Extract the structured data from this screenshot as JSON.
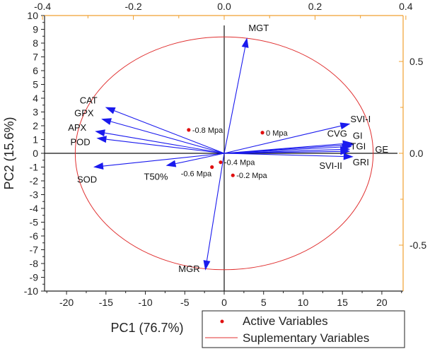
{
  "chart_data": {
    "type": "biplot",
    "xlabel": "PC1 (76.7%)",
    "ylabel": "PC2 (15.6%)",
    "xlim": [
      -22.7,
      22.7
    ],
    "ylim": [
      -10,
      10
    ],
    "xticks": [
      -20,
      -15,
      -10,
      -5,
      0,
      5,
      10,
      15,
      20
    ],
    "yticks": [
      10,
      9,
      8,
      7,
      6,
      5,
      4,
      3,
      2,
      1,
      0,
      -1,
      -2,
      -3,
      -4,
      -5,
      -6,
      -7,
      -8,
      -9,
      -10
    ],
    "top_axis": {
      "ticks": [
        "-0.4",
        "-0.2",
        "0.0",
        "0.2",
        "0.4"
      ],
      "values": [
        -0.4,
        -0.2,
        0,
        0.2,
        0.4
      ],
      "color": "#f0a030"
    },
    "right_axis": {
      "ticks": [
        "0.5",
        "0.0",
        "-0.5"
      ],
      "values": [
        0.5,
        0,
        -0.5
      ],
      "color": "#f0a030"
    },
    "circle": {
      "rx": 18.9,
      "ry": 8.45,
      "color": "#e03030"
    },
    "vectors_color": "#1a1aee",
    "vectors": [
      {
        "name": "MGT",
        "x": 2.9,
        "y": 8.4
      },
      {
        "name": "CAT",
        "x": -15.1,
        "y": 3.35
      },
      {
        "name": "GPX",
        "x": -15.6,
        "y": 2.5
      },
      {
        "name": "APX",
        "x": -16.4,
        "y": 1.6
      },
      {
        "name": "POD",
        "x": -16.2,
        "y": 1.1
      },
      {
        "name": "SOD",
        "x": -16.6,
        "y": -1.0
      },
      {
        "name": "T50%",
        "x": -7.4,
        "y": -0.9
      },
      {
        "name": "MGR",
        "x": -2.4,
        "y": -8.5
      },
      {
        "name": "SVI-I",
        "x": 16.0,
        "y": 2.15
      },
      {
        "name": "CVG",
        "x": 16.3,
        "y": 0.75
      },
      {
        "name": "GI",
        "x": 16.5,
        "y": 0.65
      },
      {
        "name": "TGI",
        "x": 16.2,
        "y": 0.5
      },
      {
        "name": "GE",
        "x": 16.0,
        "y": 0.3
      },
      {
        "name": "SVI-II",
        "x": 16.0,
        "y": 0.15
      },
      {
        "name": "GRI",
        "x": 16.4,
        "y": -0.25
      }
    ],
    "points_color": "#e01010",
    "points": [
      {
        "name": "-0.8 Mpa",
        "x": -4.5,
        "y": 1.7
      },
      {
        "name": "0 Mpa",
        "x": 4.85,
        "y": 1.5
      },
      {
        "name": "-0.4 Mpa",
        "x": -0.45,
        "y": -0.65
      },
      {
        "name": "-0.6 Mpa",
        "x": -1.55,
        "y": -1.0
      },
      {
        "name": "-0.2 Mpa",
        "x": 1.1,
        "y": -1.6
      }
    ],
    "legend": {
      "placement": "bottom-right",
      "entries": [
        {
          "label": "Active Variables",
          "marker": "dot"
        },
        {
          "label": "Suplementary Variables",
          "marker": "line"
        }
      ]
    }
  }
}
